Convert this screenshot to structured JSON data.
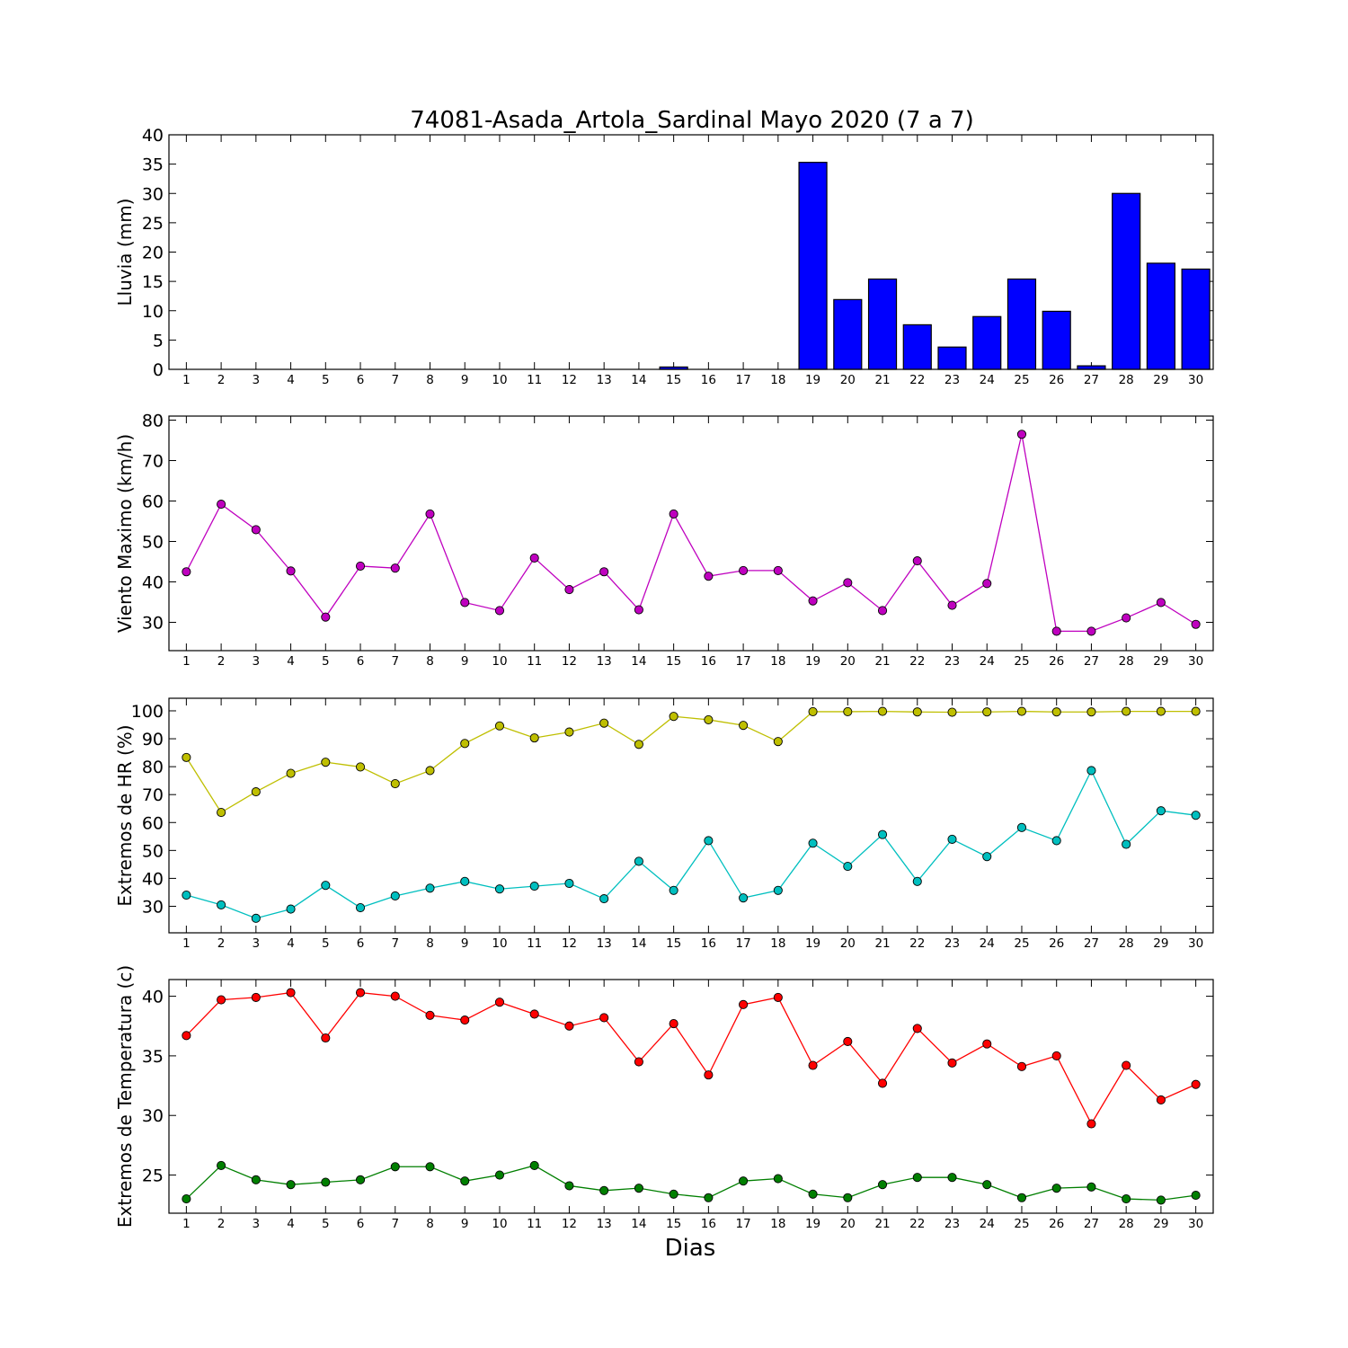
{
  "chart_data": {
    "title": "74081-Asada_Artola_Sardinal Mayo 2020  (7 a 7)",
    "xlabel": "Dias",
    "x": [
      1,
      2,
      3,
      4,
      5,
      6,
      7,
      8,
      9,
      10,
      11,
      12,
      13,
      14,
      15,
      16,
      17,
      18,
      19,
      20,
      21,
      22,
      23,
      24,
      25,
      26,
      27,
      28,
      29,
      30
    ],
    "panels": [
      {
        "type": "bar",
        "ylabel": "Lluvia (mm)",
        "ylim": [
          0,
          40
        ],
        "yticks": [
          0,
          5,
          10,
          15,
          20,
          25,
          30,
          35,
          40
        ],
        "series": [
          {
            "color": "#0000ff",
            "values": [
              0,
              0,
              0,
              0,
              0,
              0,
              0,
              0,
              0,
              0,
              0,
              0,
              0,
              0,
              0.4,
              0,
              0,
              0,
              35.3,
              11.9,
              15.4,
              7.6,
              3.8,
              9.0,
              15.4,
              9.9,
              0.6,
              30.0,
              18.1,
              17.1
            ]
          }
        ]
      },
      {
        "type": "line",
        "ylabel": "Viento Maximo (km/h)",
        "ylim": [
          23,
          81
        ],
        "yticks": [
          30,
          40,
          50,
          60,
          70,
          80
        ],
        "series": [
          {
            "color": "#bf00bf",
            "values": [
              42.5,
              59.2,
              52.9,
              42.7,
              31.3,
              43.9,
              43.4,
              56.8,
              34.9,
              32.9,
              45.9,
              38.1,
              42.5,
              33.1,
              56.8,
              41.4,
              42.8,
              42.8,
              35.3,
              39.8,
              32.9,
              45.2,
              34.2,
              39.6,
              76.5,
              27.8,
              27.8,
              31.1,
              34.9,
              29.5
            ]
          }
        ]
      },
      {
        "type": "line",
        "ylabel": "Extremos de HR (%)",
        "ylim": [
          20.5,
          104.5
        ],
        "yticks": [
          30,
          40,
          50,
          60,
          70,
          80,
          90,
          100
        ],
        "series": [
          {
            "color": "#bfbf00",
            "values": [
              83.3,
              63.6,
              71.0,
              77.6,
              81.6,
              79.9,
              73.9,
              78.6,
              88.3,
              94.6,
              90.3,
              92.4,
              95.6,
              88.0,
              98.0,
              96.8,
              94.8,
              89.0,
              99.7,
              99.7,
              99.8,
              99.6,
              99.5,
              99.6,
              99.8,
              99.6,
              99.6,
              99.8,
              99.8,
              99.8
            ]
          },
          {
            "color": "#00bfbf",
            "values": [
              34.0,
              30.5,
              25.7,
              29.0,
              37.5,
              29.5,
              33.7,
              36.5,
              38.9,
              36.2,
              37.2,
              38.2,
              32.7,
              46.1,
              35.7,
              53.5,
              33.0,
              35.7,
              52.6,
              44.3,
              55.7,
              38.9,
              54.0,
              47.8,
              58.2,
              53.5,
              78.6,
              52.2,
              64.2,
              62.6
            ]
          }
        ]
      },
      {
        "type": "line",
        "ylabel": "Extremos de Temperatura (c)",
        "ylim": [
          21.8,
          41.4
        ],
        "yticks": [
          25,
          30,
          35,
          40
        ],
        "series": [
          {
            "color": "#ff0000",
            "values": [
              36.7,
              39.7,
              39.9,
              40.3,
              36.5,
              40.3,
              40.0,
              38.4,
              38.0,
              39.5,
              38.5,
              37.5,
              38.2,
              34.5,
              37.7,
              33.4,
              39.3,
              39.9,
              34.2,
              36.2,
              32.7,
              37.3,
              34.4,
              36.0,
              34.1,
              35.0,
              29.3,
              34.2,
              31.3,
              32.6
            ]
          },
          {
            "color": "#007f00",
            "values": [
              23.0,
              25.8,
              24.6,
              24.2,
              24.4,
              24.6,
              25.7,
              25.7,
              24.5,
              25.0,
              25.8,
              24.1,
              23.7,
              23.9,
              23.4,
              23.1,
              24.5,
              24.7,
              23.4,
              23.1,
              24.2,
              24.8,
              24.8,
              24.2,
              23.1,
              23.9,
              24.0,
              23.0,
              22.9,
              23.3
            ]
          }
        ]
      }
    ]
  }
}
